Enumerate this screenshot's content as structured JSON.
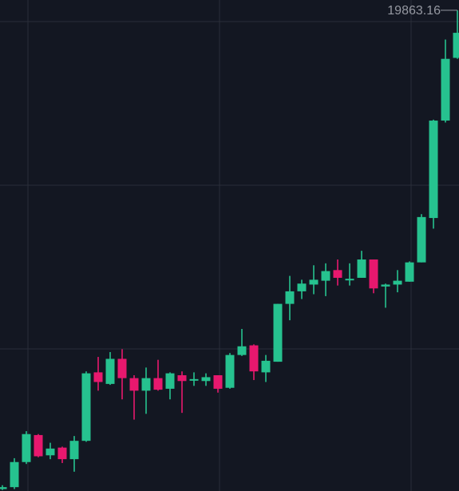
{
  "colors": {
    "background": "#131722",
    "grid": "#2a2e39",
    "up": "#26c28f",
    "down": "#e8186e",
    "max_label": "#9598a1",
    "last_price_line": "#f0b90b"
  },
  "chart_data": {
    "type": "candlestick",
    "title": "",
    "xlabel": "",
    "ylabel": "",
    "grid": true,
    "ylim": [
      14880,
      19970
    ],
    "max_label": "19863.16",
    "max_value": 19863.16,
    "candles": [
      {
        "o": 14900,
        "h": 14940,
        "l": 14890,
        "c": 14920
      },
      {
        "o": 14920,
        "h": 15220,
        "l": 14900,
        "c": 15180
      },
      {
        "o": 15180,
        "h": 15500,
        "l": 15160,
        "c": 15470
      },
      {
        "o": 15460,
        "h": 15470,
        "l": 15230,
        "c": 15240
      },
      {
        "o": 15250,
        "h": 15380,
        "l": 15210,
        "c": 15320
      },
      {
        "o": 15330,
        "h": 15340,
        "l": 15170,
        "c": 15210
      },
      {
        "o": 15210,
        "h": 15450,
        "l": 15080,
        "c": 15400
      },
      {
        "o": 15400,
        "h": 16120,
        "l": 15390,
        "c": 16100
      },
      {
        "o": 16110,
        "h": 16270,
        "l": 15920,
        "c": 16010
      },
      {
        "o": 15990,
        "h": 16320,
        "l": 15980,
        "c": 16250
      },
      {
        "o": 16250,
        "h": 16350,
        "l": 15830,
        "c": 16050
      },
      {
        "o": 16050,
        "h": 16080,
        "l": 15620,
        "c": 15920
      },
      {
        "o": 15920,
        "h": 16160,
        "l": 15680,
        "c": 16050
      },
      {
        "o": 16050,
        "h": 16240,
        "l": 15920,
        "c": 15930
      },
      {
        "o": 15940,
        "h": 16110,
        "l": 15830,
        "c": 16100
      },
      {
        "o": 16080,
        "h": 16120,
        "l": 15690,
        "c": 16020
      },
      {
        "o": 16040,
        "h": 16110,
        "l": 15970,
        "c": 16040
      },
      {
        "o": 16020,
        "h": 16100,
        "l": 15970,
        "c": 16060
      },
      {
        "o": 16080,
        "h": 16080,
        "l": 15900,
        "c": 15940
      },
      {
        "o": 15950,
        "h": 16310,
        "l": 15940,
        "c": 16290
      },
      {
        "o": 16290,
        "h": 16560,
        "l": 16280,
        "c": 16380
      },
      {
        "o": 16390,
        "h": 16400,
        "l": 16030,
        "c": 16120
      },
      {
        "o": 16110,
        "h": 16290,
        "l": 16010,
        "c": 16230
      },
      {
        "o": 16220,
        "h": 16820,
        "l": 16220,
        "c": 16820
      },
      {
        "o": 16820,
        "h": 17110,
        "l": 16650,
        "c": 16950
      },
      {
        "o": 16950,
        "h": 17070,
        "l": 16870,
        "c": 17030
      },
      {
        "o": 17020,
        "h": 17220,
        "l": 16920,
        "c": 17070
      },
      {
        "o": 17060,
        "h": 17240,
        "l": 16900,
        "c": 17160
      },
      {
        "o": 17170,
        "h": 17280,
        "l": 17010,
        "c": 17090
      },
      {
        "o": 17080,
        "h": 17240,
        "l": 17010,
        "c": 17080
      },
      {
        "o": 17090,
        "h": 17370,
        "l": 17090,
        "c": 17280
      },
      {
        "o": 17280,
        "h": 17280,
        "l": 16930,
        "c": 16980
      },
      {
        "o": 17000,
        "h": 17030,
        "l": 16780,
        "c": 17020
      },
      {
        "o": 17020,
        "h": 17170,
        "l": 16940,
        "c": 17060
      },
      {
        "o": 17050,
        "h": 17260,
        "l": 17050,
        "c": 17250
      },
      {
        "o": 17250,
        "h": 17750,
        "l": 17250,
        "c": 17720
      },
      {
        "o": 17710,
        "h": 18730,
        "l": 17600,
        "c": 18720
      },
      {
        "o": 18720,
        "h": 19560,
        "l": 18700,
        "c": 19360
      },
      {
        "o": 19370,
        "h": 19863.16,
        "l": 19360,
        "c": 19630
      }
    ]
  }
}
